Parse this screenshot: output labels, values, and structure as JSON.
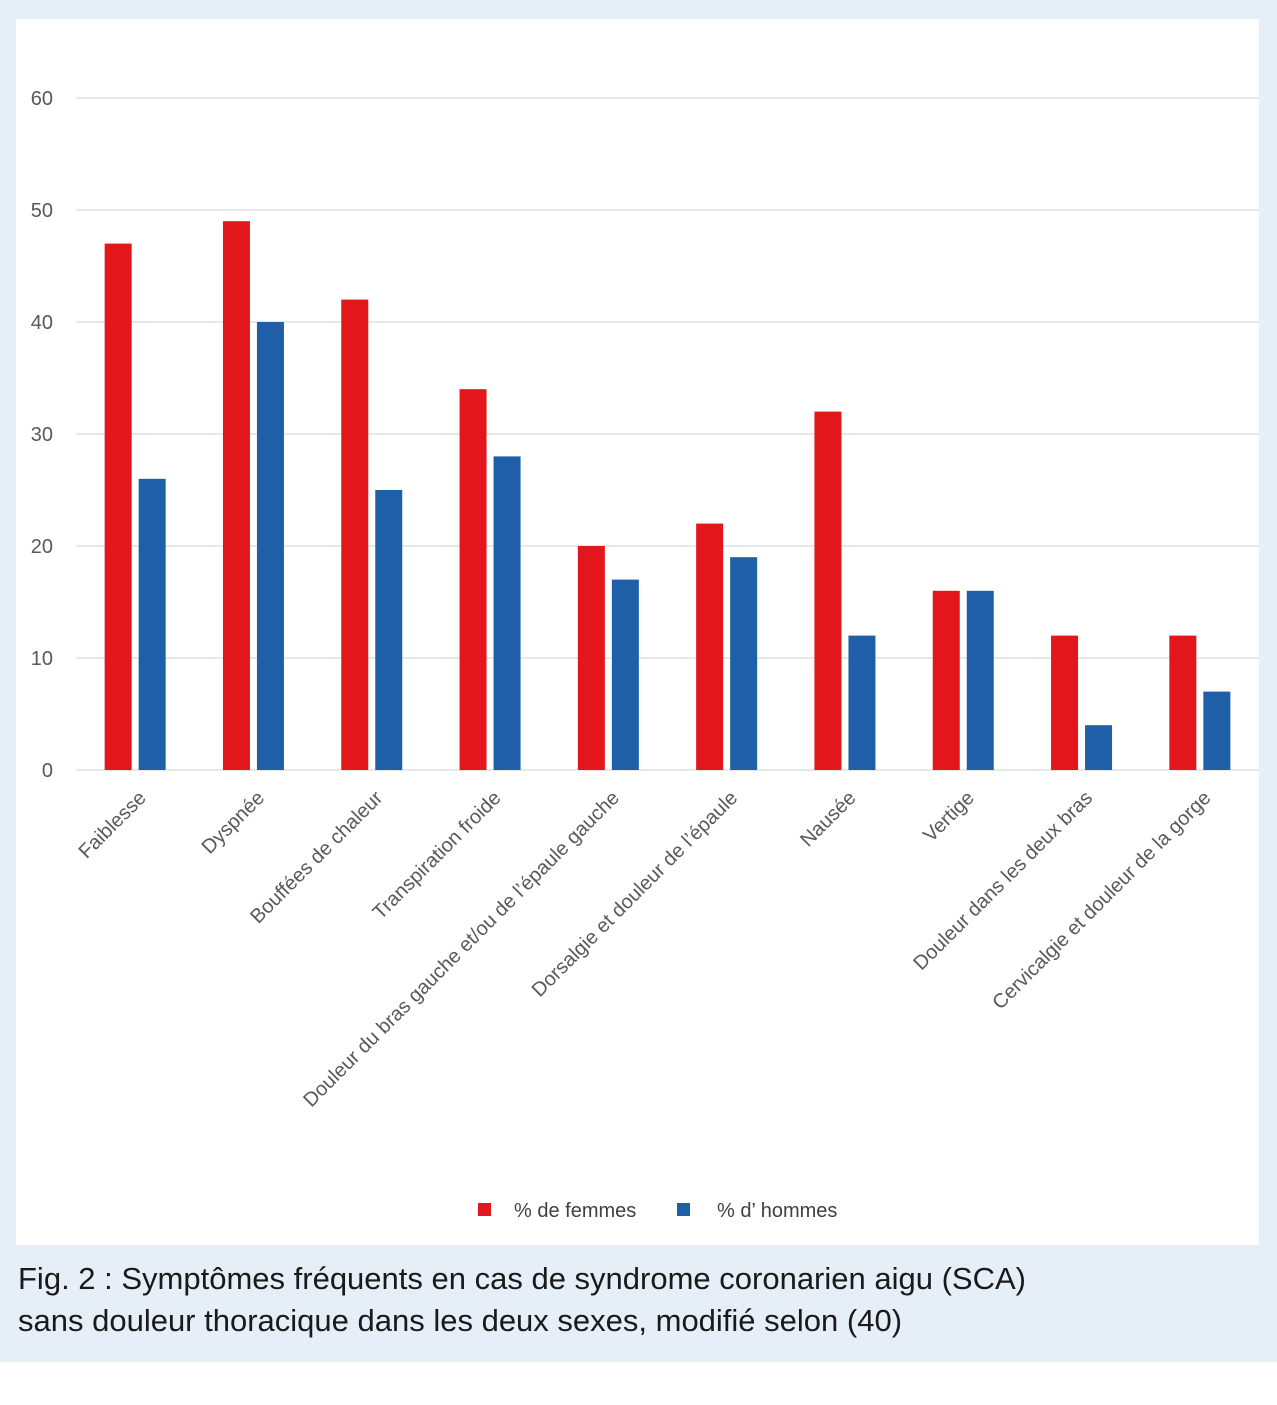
{
  "chart_data": {
    "type": "bar",
    "title": "",
    "xlabel": "",
    "ylabel": "",
    "ylim": [
      0,
      60
    ],
    "yticks": [
      0,
      10,
      20,
      30,
      40,
      50,
      60
    ],
    "grid": true,
    "legend_position": "bottom",
    "categories": [
      "Faiblesse",
      "Dyspnée",
      "Bouffées de chaleur",
      "Transpiration froide",
      "Douleur du bras gauche et/ou de l’épaule gauche",
      "Dorsalgie et douleur de l’épaule",
      "Nausée",
      "Vertige",
      "Douleur dans les deux bras",
      "Cervicalgie et douleur de la gorge"
    ],
    "series": [
      {
        "name": "% de femmes",
        "color": "#e3161b",
        "values": [
          47,
          49,
          42,
          34,
          20,
          22,
          32,
          16,
          12,
          12
        ]
      },
      {
        "name": "% d’ hommes",
        "color": "#1f5fa8",
        "values": [
          26,
          40,
          25,
          28,
          17,
          19,
          12,
          16,
          4,
          7
        ]
      }
    ]
  },
  "caption": {
    "line1": "Fig. 2 : Symptômes fréquents en cas de syndrome coronarien aigu (SCA)",
    "line2": "sans douleur thoracique dans les deux sexes, modifié selon (40)"
  },
  "colors": {
    "figure_background": "#e6eef8",
    "gridline": "#d9d9d9"
  }
}
